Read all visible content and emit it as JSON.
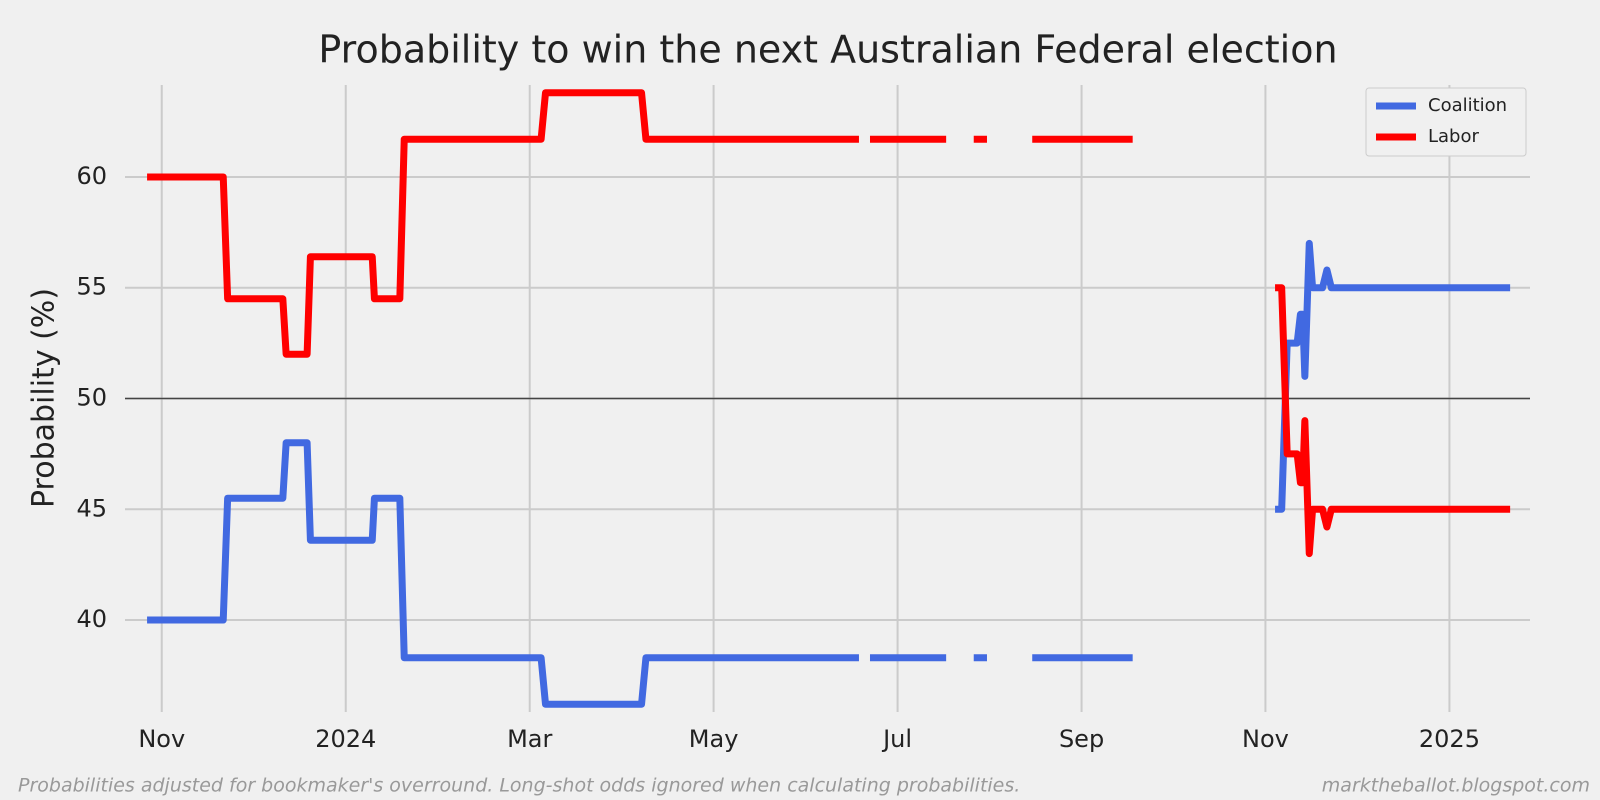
{
  "chart_data": {
    "type": "line",
    "title": "Probability to win the next Australian Federal election",
    "y_label": "Probability (%)",
    "footnote_left": "Probabilities adjusted for bookmaker's overround. Long-shot odds ignored when calculating probabilities.",
    "footnote_right": "marktheballot.blogspot.com",
    "x": [
      2023.82,
      2023.889,
      2023.893,
      2023.943,
      2023.946,
      2023.965,
      2023.968,
      2024.024,
      2024.026,
      2024.049,
      2024.053,
      2024.177,
      2024.181,
      2024.268,
      2024.272,
      2024.465,
      2024.47,
      2024.475,
      2024.544,
      2024.556,
      2024.569,
      2024.581,
      2024.6,
      2024.622,
      2024.713,
      2024.75,
      2024.842,
      2024.848,
      2024.853,
      2024.862,
      2024.865,
      2024.867,
      2024.869,
      2024.873,
      2024.876,
      2024.885,
      2024.889,
      2024.893,
      2025.055
    ],
    "series": [
      {
        "name": "Coalition",
        "color": "#4169e1",
        "values": [
          40,
          40,
          45.5,
          45.5,
          48,
          48,
          43.6,
          43.6,
          45.5,
          45.5,
          38.3,
          38.3,
          36.2,
          36.2,
          38.3,
          38.3,
          null,
          38.3,
          38.3,
          null,
          38.3,
          38.3,
          null,
          38.3,
          38.3,
          null,
          45,
          45,
          52.5,
          52.5,
          53.8,
          53.8,
          51,
          57,
          55,
          55,
          55.8,
          55,
          55
        ]
      },
      {
        "name": "Labor",
        "color": "#ff0000",
        "values": [
          60,
          60,
          54.5,
          54.5,
          52,
          52,
          56.4,
          56.4,
          54.5,
          54.5,
          61.7,
          61.7,
          63.8,
          63.8,
          61.7,
          61.7,
          null,
          61.7,
          61.7,
          null,
          61.7,
          61.7,
          null,
          61.7,
          61.7,
          null,
          55,
          55,
          47.5,
          47.5,
          46.2,
          46.2,
          49,
          43,
          45,
          45,
          44.2,
          45,
          45
        ]
      }
    ],
    "xlim": [
      2023.8,
      2025.073
    ],
    "xticks": [
      {
        "value": 2023.8333,
        "label": "Nov"
      },
      2024,
      {
        "value": 2024.1667,
        "label": "Mar"
      },
      {
        "value": 2024.3333,
        "label": "May"
      },
      {
        "value": 2024.5,
        "label": "Jul"
      },
      {
        "value": 2024.6667,
        "label": "Sep"
      },
      {
        "value": 2024.8333,
        "label": "Nov"
      },
      2025
    ],
    "ylim": [
      35.85,
      64.15
    ],
    "yticks": [
      40,
      45,
      50,
      55,
      60
    ],
    "reference_line": 50,
    "grid": true,
    "legend": "upper right"
  }
}
